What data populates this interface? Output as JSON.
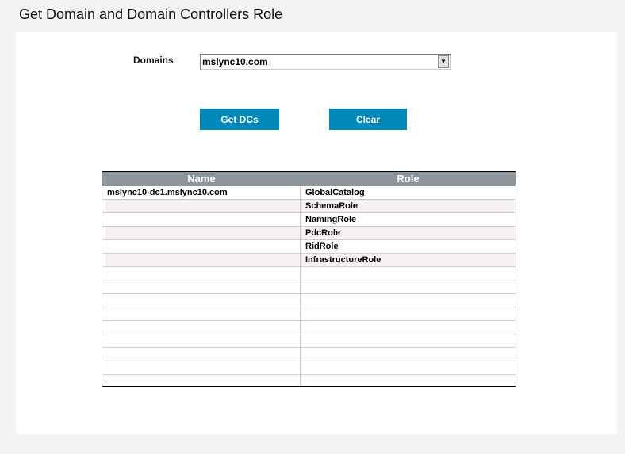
{
  "page": {
    "title": "Get Domain and Domain Controllers Role"
  },
  "form": {
    "domains_label": "Domains",
    "domains_value": "mslync10.com"
  },
  "buttons": {
    "get_dcs": "Get DCs",
    "clear": "Clear"
  },
  "colors": {
    "button": "#0089b8",
    "header": "#8e969c"
  },
  "table": {
    "columns": [
      "Name",
      "Role"
    ],
    "rows": [
      [
        "mslync10-dc1.mslync10.com",
        "GlobalCatalog"
      ],
      [
        "",
        "SchemaRole"
      ],
      [
        "",
        "NamingRole"
      ],
      [
        "",
        "PdcRole"
      ],
      [
        "",
        "RidRole"
      ],
      [
        "",
        "InfrastructureRole"
      ],
      [
        "",
        ""
      ],
      [
        "",
        ""
      ],
      [
        "",
        ""
      ],
      [
        "",
        ""
      ],
      [
        "",
        ""
      ],
      [
        "",
        ""
      ],
      [
        "",
        ""
      ],
      [
        "",
        ""
      ],
      [
        "",
        ""
      ]
    ]
  }
}
